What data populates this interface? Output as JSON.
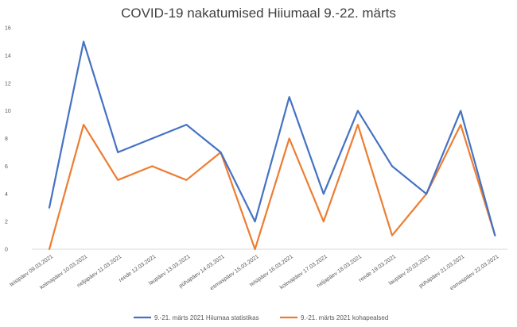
{
  "chart_data": {
    "type": "line",
    "title": "COVID-19 nakatumised Hiiumaal 9.-22. märts",
    "categories": [
      "teisipäev 09.03.2021",
      "kolmapäev 10.03.2021",
      "neljapäev 11.03.2021",
      "reede 12.03.2021",
      "laupäev 13.03.2021",
      "pühapäev 14.03.2021",
      "esmaspäev 15.03.2021",
      "teisipäev 16.03.2021",
      "kolmapäev 17.03.2021",
      "neljapäev 18.03.2021",
      "reede 19.03.2021",
      "laupäev 20.03.2021",
      "pühapäev 21.03.2021",
      "esmaspäev 22.03.2021"
    ],
    "series": [
      {
        "name": "9.-21. märts 2021 Hiiumaa statistikas",
        "color": "#4472C4",
        "values": [
          3,
          15,
          7,
          8,
          9,
          7,
          2,
          11,
          4,
          10,
          6,
          4,
          10,
          1
        ]
      },
      {
        "name": "9.-21. märts 2021 kohapealsed",
        "color": "#ED7D31",
        "values": [
          0,
          9,
          5,
          6,
          5,
          7,
          0,
          8,
          2,
          9,
          1,
          4,
          9,
          1
        ]
      }
    ],
    "ylim": [
      0,
      16
    ],
    "yticks": [
      "0",
      "2",
      "4",
      "6",
      "8",
      "10",
      "12",
      "14",
      "16"
    ],
    "grid": false,
    "legend": "bottom"
  }
}
